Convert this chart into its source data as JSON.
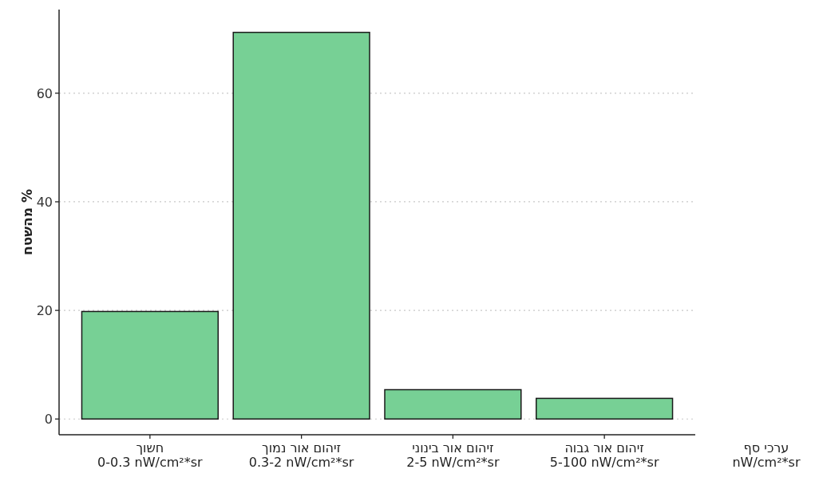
{
  "chart_data": {
    "type": "bar",
    "ylabel": "% מהשטח",
    "categories": [
      "חשוך\n0-0.3 nW/cm²*sr",
      "זיהום אור נמוך\n0.3-2 nW/cm²*sr",
      "זיהום אור בינוני\n2-5 nW/cm²*sr",
      "זיהום אור גבוה\n5-100 nW/cm²*sr"
    ],
    "values": [
      19.8,
      71.2,
      5.4,
      3.8
    ],
    "color": "#77d095",
    "ylim": [
      -2.9,
      75.4
    ],
    "yticks": [
      0,
      20,
      40,
      60
    ],
    "grid": "y",
    "annotations": [
      "ערכי סף\nnW/cm²*sr"
    ]
  }
}
